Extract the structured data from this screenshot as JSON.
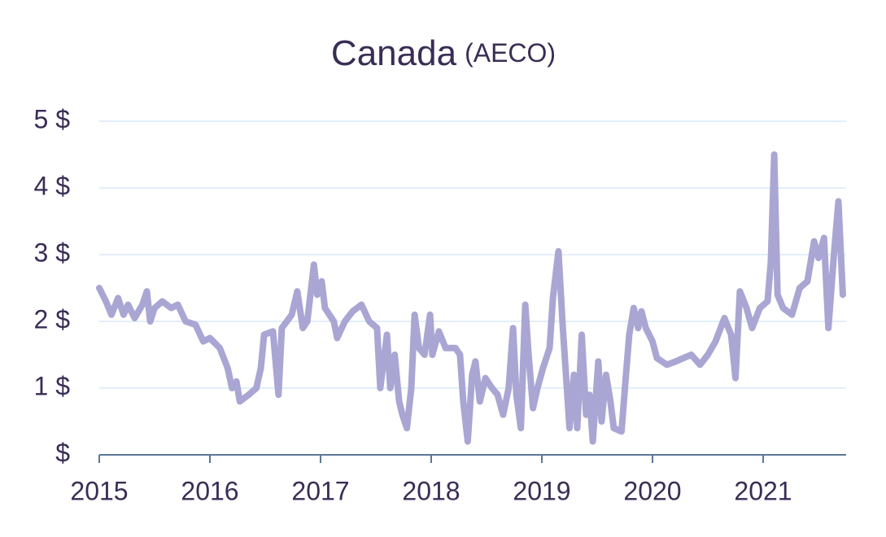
{
  "chart_data": {
    "type": "line",
    "title": "Canada",
    "subtitle": "(AECO)",
    "xlim": [
      2015,
      2021.75
    ],
    "xticks": [
      2015,
      2016,
      2017,
      2018,
      2019,
      2020,
      2021
    ],
    "ylim": [
      0,
      5
    ],
    "yticks": [
      {
        "value": 0,
        "label": "$"
      },
      {
        "value": 1,
        "label": "1 $"
      },
      {
        "value": 2,
        "label": "2 $"
      },
      {
        "value": 3,
        "label": "3 $"
      },
      {
        "value": 4,
        "label": "4 $"
      },
      {
        "value": 5,
        "label": "5 $"
      }
    ],
    "grid": true,
    "series": [
      {
        "name": "AECO",
        "color": "#a9a6d3",
        "x": [
          2015.0,
          2015.06,
          2015.11,
          2015.17,
          2015.22,
          2015.26,
          2015.32,
          2015.39,
          2015.43,
          2015.46,
          2015.5,
          2015.57,
          2015.65,
          2015.71,
          2015.78,
          2015.87,
          2015.94,
          2016.0,
          2016.09,
          2016.16,
          2016.2,
          2016.24,
          2016.27,
          2016.35,
          2016.42,
          2016.46,
          2016.49,
          2016.57,
          2016.62,
          2016.65,
          2016.74,
          2016.79,
          2016.84,
          2016.88,
          2016.94,
          2016.97,
          2017.01,
          2017.04,
          2017.12,
          2017.15,
          2017.22,
          2017.29,
          2017.37,
          2017.44,
          2017.51,
          2017.54,
          2017.6,
          2017.63,
          2017.67,
          2017.71,
          2017.74,
          2017.78,
          2017.82,
          2017.85,
          2017.89,
          2017.94,
          2017.99,
          2018.01,
          2018.07,
          2018.13,
          2018.22,
          2018.26,
          2018.29,
          2018.33,
          2018.37,
          2018.4,
          2018.44,
          2018.49,
          2018.55,
          2018.6,
          2018.65,
          2018.7,
          2018.74,
          2018.77,
          2018.81,
          2018.85,
          2018.88,
          2018.92,
          2018.96,
          2019.01,
          2019.07,
          2019.1,
          2019.15,
          2019.19,
          2019.23,
          2019.25,
          2019.29,
          2019.32,
          2019.36,
          2019.4,
          2019.43,
          2019.46,
          2019.51,
          2019.54,
          2019.58,
          2019.62,
          2019.65,
          2019.72,
          2019.76,
          2019.79,
          2019.83,
          2019.87,
          2019.9,
          2019.94,
          2020.0,
          2020.04,
          2020.13,
          2020.21,
          2020.28,
          2020.35,
          2020.43,
          2020.5,
          2020.57,
          2020.65,
          2020.71,
          2020.75,
          2020.79,
          2020.85,
          2020.9,
          2020.97,
          2021.04,
          2021.07,
          2021.1,
          2021.13,
          2021.18,
          2021.26,
          2021.33,
          2021.4,
          2021.46,
          2021.5,
          2021.55,
          2021.59,
          2021.64,
          2021.68,
          2021.72
        ],
        "values": [
          2.5,
          2.3,
          2.1,
          2.35,
          2.1,
          2.25,
          2.05,
          2.25,
          2.45,
          2.0,
          2.2,
          2.3,
          2.2,
          2.25,
          2.0,
          1.95,
          1.7,
          1.75,
          1.6,
          1.3,
          1.0,
          1.1,
          0.8,
          0.9,
          1.0,
          1.3,
          1.8,
          1.85,
          0.9,
          1.9,
          2.1,
          2.45,
          1.9,
          2.0,
          2.85,
          2.4,
          2.6,
          2.2,
          2.0,
          1.75,
          2.0,
          2.15,
          2.25,
          2.0,
          1.9,
          1.0,
          1.8,
          1.0,
          1.5,
          0.8,
          0.6,
          0.4,
          1.0,
          2.1,
          1.6,
          1.5,
          2.1,
          1.5,
          1.85,
          1.6,
          1.6,
          1.5,
          0.8,
          0.2,
          1.2,
          1.4,
          0.8,
          1.15,
          1.0,
          0.9,
          0.6,
          1.0,
          1.9,
          0.9,
          0.4,
          2.25,
          1.5,
          0.7,
          1.0,
          1.3,
          1.6,
          2.35,
          3.05,
          1.9,
          0.9,
          0.4,
          1.2,
          0.4,
          1.8,
          0.6,
          0.9,
          0.2,
          1.4,
          0.5,
          1.2,
          0.8,
          0.4,
          0.35,
          1.2,
          1.8,
          2.2,
          1.9,
          2.15,
          1.9,
          1.7,
          1.45,
          1.35,
          1.4,
          1.45,
          1.5,
          1.35,
          1.5,
          1.7,
          2.05,
          1.8,
          1.15,
          2.45,
          2.2,
          1.9,
          2.2,
          2.3,
          2.9,
          4.5,
          2.4,
          2.2,
          2.1,
          2.5,
          2.6,
          3.2,
          2.95,
          3.25,
          1.9,
          3.0,
          3.8,
          2.4
        ]
      }
    ]
  }
}
